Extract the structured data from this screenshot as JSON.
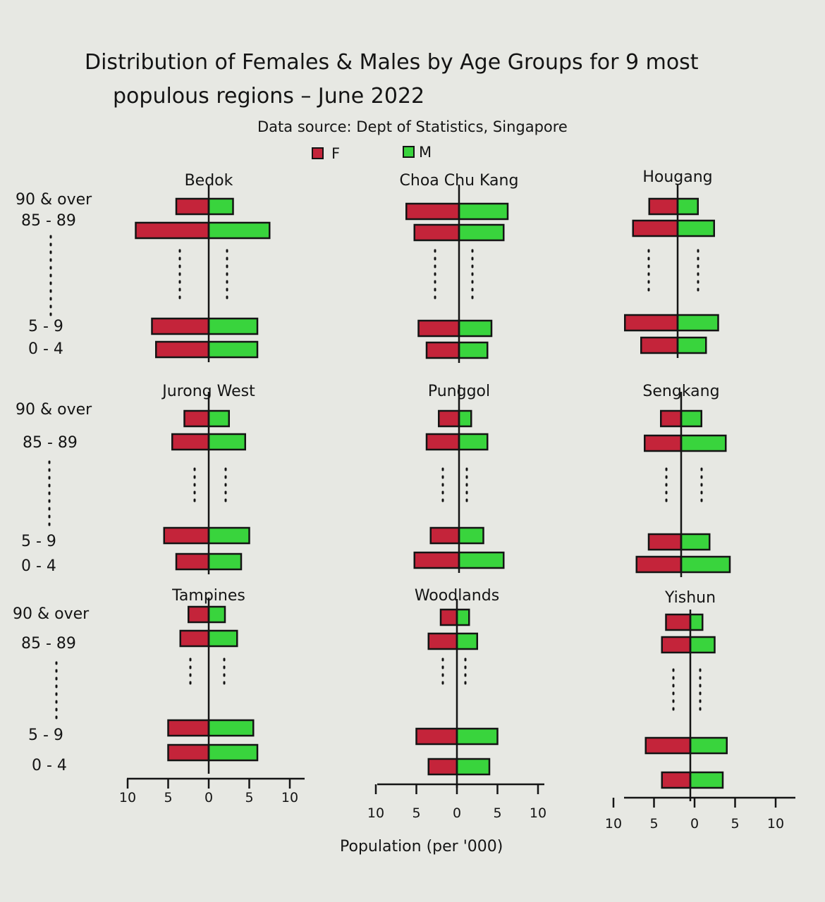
{
  "title_line1": "Distribution of Females & Males by Age Groups for 9 most",
  "title_line2": "populous regions – June 2022",
  "source": "Data source: Dept of Statistics, Singapore",
  "xlabel": "Population (per '000)",
  "legend": [
    {
      "label": "F",
      "color": "#c4243a"
    },
    {
      "label": "M",
      "color": "#39d43d"
    }
  ],
  "age_labels": {
    "top": "90 & over",
    "top_row3": "90 & over",
    "second": "85 - 89",
    "bottom_second": "5 - 9",
    "bottom": "0 - 4"
  },
  "colors": {
    "female": "#c4243a",
    "male": "#39d43d",
    "ink": "#141414"
  },
  "chart_data": {
    "type": "bar",
    "orientation": "horizontal-population-pyramid",
    "xlabel": "Population (per '000)",
    "xlim": [
      -10,
      10
    ],
    "x_ticks": [
      "10",
      "5",
      "0",
      "5",
      "10"
    ],
    "age_groups_shown": [
      "90 & over",
      "85 - 89",
      "5 - 9",
      "0 - 4"
    ],
    "gap_between": "85 - 89 and 5 - 9 (dotted, omitted groups)",
    "legend": [
      "F",
      "M"
    ],
    "panels": [
      {
        "region": "Bedok",
        "series": [
          {
            "name": "F",
            "values": [
              4,
              9,
              7,
              6.5
            ]
          },
          {
            "name": "M",
            "values": [
              3,
              7.5,
              6,
              6
            ]
          }
        ]
      },
      {
        "region": "Choa Chu Kang",
        "series": [
          {
            "name": "F",
            "values": [
              6.5,
              5.5,
              5,
              4
            ]
          },
          {
            "name": "M",
            "values": [
              6,
              5.5,
              4,
              3.5
            ]
          }
        ]
      },
      {
        "region": "Hougang",
        "series": [
          {
            "name": "F",
            "values": [
              3.5,
              5.5,
              6.5,
              4.5
            ]
          },
          {
            "name": "M",
            "values": [
              2.5,
              4.5,
              5,
              3.5
            ]
          }
        ]
      },
      {
        "region": "Jurong West",
        "series": [
          {
            "name": "F",
            "values": [
              3,
              4.5,
              5.5,
              4
            ]
          },
          {
            "name": "M",
            "values": [
              2.5,
              4.5,
              5,
              4
            ]
          }
        ]
      },
      {
        "region": "Punggol",
        "series": [
          {
            "name": "F",
            "values": [
              2.5,
              4,
              3.5,
              5.5
            ]
          },
          {
            "name": "M",
            "values": [
              1.5,
              3.5,
              3,
              5.5
            ]
          }
        ]
      },
      {
        "region": "Sengkang",
        "series": [
          {
            "name": "F",
            "values": [
              2.5,
              4.5,
              4,
              5.5
            ]
          },
          {
            "name": "M",
            "values": [
              2.5,
              5.5,
              3.5,
              6
            ]
          }
        ]
      },
      {
        "region": "Tampines",
        "series": [
          {
            "name": "F",
            "values": [
              2.5,
              3.5,
              5,
              5
            ]
          },
          {
            "name": "M",
            "values": [
              2,
              3.5,
              5.5,
              6
            ]
          }
        ]
      },
      {
        "region": "Woodlands",
        "series": [
          {
            "name": "F",
            "values": [
              2,
              3.5,
              5,
              3.5
            ]
          },
          {
            "name": "M",
            "values": [
              1.5,
              2.5,
              5,
              4
            ]
          }
        ]
      },
      {
        "region": "Yishun",
        "series": [
          {
            "name": "F",
            "values": [
              3,
              3.5,
              5.5,
              3.5
            ]
          },
          {
            "name": "M",
            "values": [
              1.5,
              3,
              4.5,
              4
            ]
          }
        ]
      }
    ]
  }
}
